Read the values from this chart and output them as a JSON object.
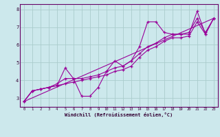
{
  "xlabel": "Windchill (Refroidissement éolien,°C)",
  "bg_color": "#cce8ec",
  "grid_color": "#aacccc",
  "line_color": "#990099",
  "xlim": [
    -0.5,
    23.5
  ],
  "ylim": [
    2.5,
    8.3
  ],
  "xticks": [
    0,
    1,
    2,
    3,
    4,
    5,
    6,
    7,
    8,
    9,
    10,
    11,
    12,
    13,
    14,
    15,
    16,
    17,
    18,
    19,
    20,
    21,
    22,
    23
  ],
  "yticks": [
    3,
    4,
    5,
    6,
    7,
    8
  ],
  "series1_x": [
    0,
    1,
    2,
    3,
    4,
    5,
    6,
    7,
    8,
    9,
    10,
    11,
    12,
    13,
    14,
    15,
    16,
    17,
    18,
    19,
    20,
    21,
    22,
    23
  ],
  "series1_y": [
    2.8,
    3.4,
    3.5,
    3.6,
    3.7,
    4.7,
    4.1,
    3.1,
    3.1,
    3.6,
    4.5,
    5.1,
    4.8,
    5.1,
    5.9,
    7.3,
    7.3,
    6.7,
    6.6,
    6.6,
    6.6,
    7.9,
    6.6,
    7.5
  ],
  "series2_x": [
    0,
    1,
    2,
    3,
    4,
    5,
    6,
    7,
    8,
    9,
    10,
    11,
    12,
    13,
    14,
    15,
    16,
    17,
    18,
    19,
    20,
    21,
    22,
    23
  ],
  "series2_y": [
    2.8,
    3.4,
    3.5,
    3.6,
    3.8,
    4.1,
    4.1,
    4.1,
    4.2,
    4.3,
    4.5,
    4.7,
    4.8,
    5.1,
    5.5,
    5.9,
    6.1,
    6.4,
    6.6,
    6.6,
    6.7,
    7.5,
    6.7,
    7.5
  ],
  "series3_x": [
    0,
    1,
    2,
    3,
    4,
    5,
    6,
    7,
    8,
    9,
    10,
    11,
    12,
    13,
    14,
    15,
    16,
    17,
    18,
    19,
    20,
    21,
    22,
    23
  ],
  "series3_y": [
    2.8,
    3.4,
    3.5,
    3.6,
    3.7,
    3.8,
    3.9,
    4.0,
    4.1,
    4.2,
    4.3,
    4.5,
    4.6,
    4.8,
    5.3,
    5.7,
    5.9,
    6.2,
    6.4,
    6.4,
    6.5,
    7.3,
    6.6,
    7.5
  ],
  "series4_x": [
    0,
    23
  ],
  "series4_y": [
    2.8,
    7.5
  ]
}
